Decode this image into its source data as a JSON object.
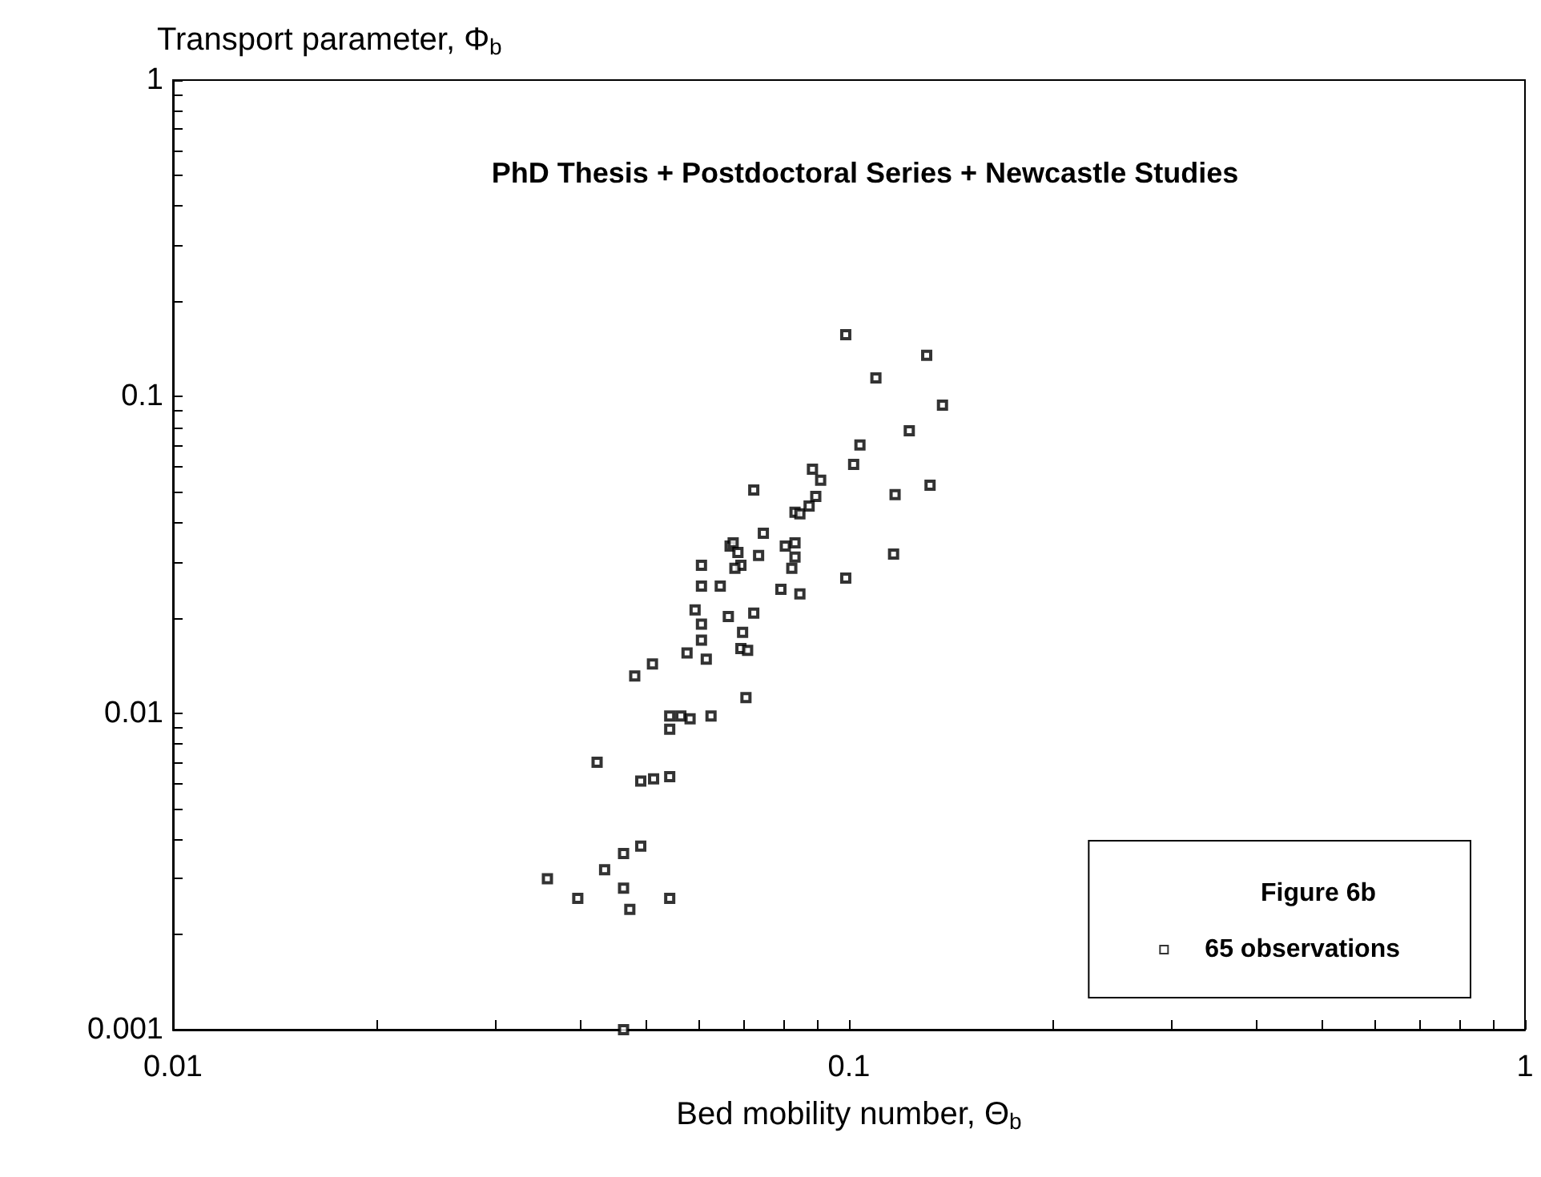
{
  "chart_data": {
    "type": "scatter",
    "title": "PhD Thesis + Postdoctoral Series + Newcastle Studies",
    "xlabel": "Bed mobility number, Θ$_{b}$",
    "ylabel": "Transport parameter, Φ$_{b}$",
    "legend_title": "Figure 6b",
    "legend": "bottom right",
    "log": "xy",
    "marker": "square",
    "grid": false,
    "xlim": [
      0.01,
      1
    ],
    "ylim": [
      0.001,
      1
    ],
    "xticks": [
      0.01,
      {
        "value": 0.02,
        "label": null
      },
      {
        "value": 0.03,
        "label": null
      },
      {
        "value": 0.04,
        "label": null
      },
      {
        "value": 0.05,
        "label": null
      },
      {
        "value": 0.06,
        "label": null
      },
      {
        "value": 0.07,
        "label": null
      },
      {
        "value": 0.08,
        "label": null
      },
      {
        "value": 0.09,
        "label": null
      },
      0.1,
      {
        "value": 0.2,
        "label": null
      },
      {
        "value": 0.3,
        "label": null
      },
      {
        "value": 0.4,
        "label": null
      },
      {
        "value": 0.5,
        "label": null
      },
      {
        "value": 0.6,
        "label": null
      },
      {
        "value": 0.7,
        "label": null
      },
      {
        "value": 0.8,
        "label": null
      },
      {
        "value": 0.9,
        "label": null
      },
      1
    ],
    "yticks": [
      0.001,
      {
        "value": 0.002,
        "label": null
      },
      {
        "value": 0.003,
        "label": null
      },
      {
        "value": 0.004,
        "label": null
      },
      {
        "value": 0.005,
        "label": null
      },
      {
        "value": 0.006,
        "label": null
      },
      {
        "value": 0.007,
        "label": null
      },
      {
        "value": 0.008,
        "label": null
      },
      {
        "value": 0.009,
        "label": null
      },
      0.01,
      {
        "value": 0.02,
        "label": null
      },
      {
        "value": 0.03,
        "label": null
      },
      {
        "value": 0.04,
        "label": null
      },
      {
        "value": 0.05,
        "label": null
      },
      {
        "value": 0.06,
        "label": null
      },
      {
        "value": 0.07,
        "label": null
      },
      {
        "value": 0.08,
        "label": null
      },
      {
        "value": 0.09,
        "label": null
      },
      0.1,
      {
        "value": 0.2,
        "label": null
      },
      {
        "value": 0.3,
        "label": null
      },
      {
        "value": 0.4,
        "label": null
      },
      {
        "value": 0.5,
        "label": null
      },
      {
        "value": 0.6,
        "label": null
      },
      {
        "value": 0.7,
        "label": null
      },
      {
        "value": 0.8,
        "label": null
      },
      {
        "value": 0.9,
        "label": null
      },
      1
    ],
    "series": [
      {
        "name": "65 observations",
        "color": "#000000",
        "x": [
          0.0358,
          0.0397,
          0.0435,
          0.0464,
          0.0464,
          0.0474,
          0.0543,
          0.0464,
          0.0492,
          0.0424,
          0.0492,
          0.0514,
          0.0543,
          0.0482,
          0.0512,
          0.0543,
          0.0564,
          0.0582,
          0.0625,
          0.0543,
          0.0576,
          0.0615,
          0.0605,
          0.0692,
          0.0708,
          0.0605,
          0.0696,
          0.0592,
          0.0663,
          0.0723,
          0.0605,
          0.0645,
          0.0793,
          0.0846,
          0.0605,
          0.0692,
          0.0678,
          0.0823,
          0.0704,
          0.0723,
          0.0832,
          0.0846,
          0.0747,
          0.0667,
          0.0674,
          0.0685,
          0.0735,
          0.0805,
          0.0832,
          0.0832,
          0.0873,
          0.0893,
          0.0883,
          0.0908,
          0.1016,
          0.1038,
          0.0989,
          0.1303,
          0.1096,
          0.1375,
          0.1228,
          0.1318,
          0.117,
          0.1164,
          0.0989
        ],
        "values": [
          0.003,
          0.0026,
          0.0032,
          0.0036,
          0.0028,
          0.0024,
          0.0026,
          0.001,
          0.0038,
          0.007,
          0.0061,
          0.0062,
          0.0063,
          0.0131,
          0.0143,
          0.0098,
          0.0098,
          0.0096,
          0.0098,
          0.0089,
          0.0155,
          0.0148,
          0.017,
          0.016,
          0.0158,
          0.0191,
          0.018,
          0.0212,
          0.0202,
          0.0207,
          0.0252,
          0.0252,
          0.0246,
          0.0238,
          0.0293,
          0.0293,
          0.0287,
          0.0287,
          0.0112,
          0.0507,
          0.0431,
          0.0426,
          0.037,
          0.0337,
          0.0345,
          0.0322,
          0.0315,
          0.0337,
          0.0345,
          0.0311,
          0.0451,
          0.0484,
          0.059,
          0.0544,
          0.0611,
          0.0703,
          0.157,
          0.135,
          0.1146,
          0.094,
          0.078,
          0.0525,
          0.049,
          0.0318,
          0.0267
        ]
      }
    ]
  }
}
